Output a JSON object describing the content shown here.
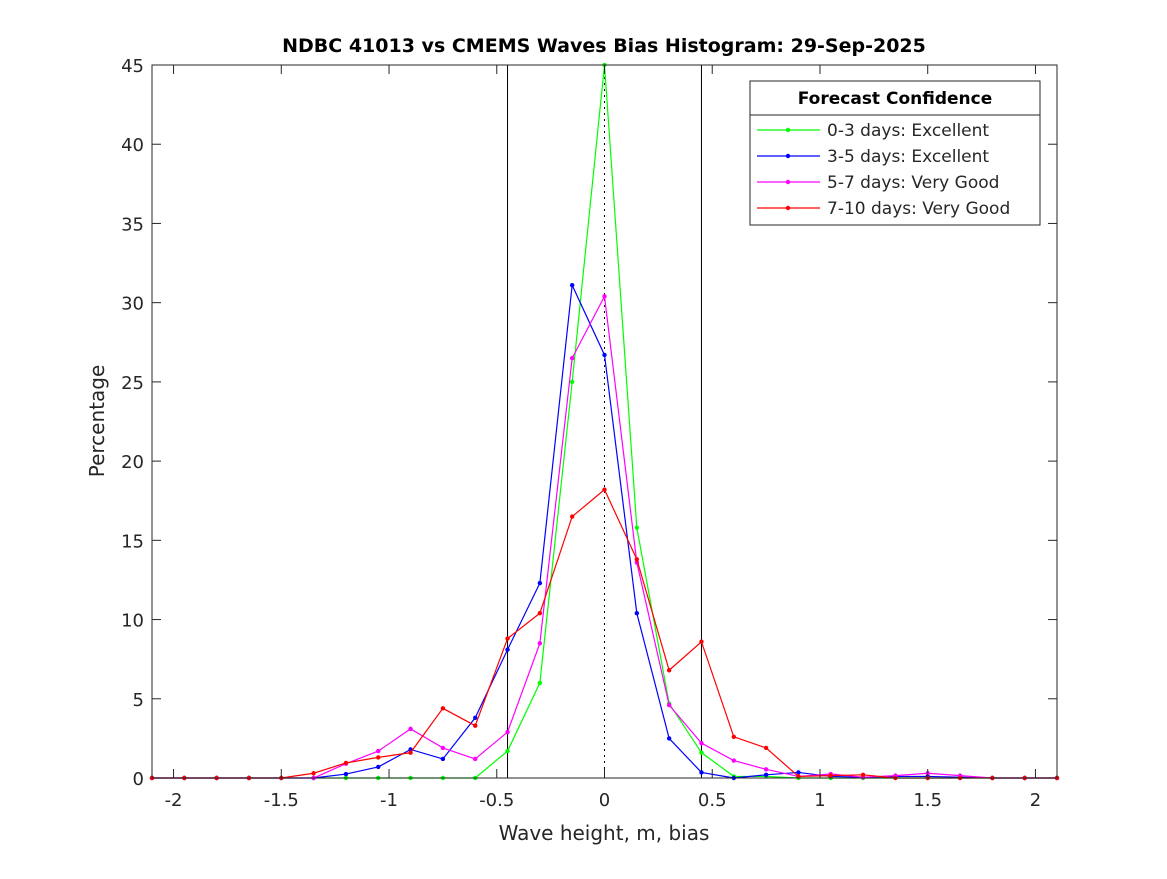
{
  "chart_data": {
    "type": "line",
    "title": "NDBC 41013 vs CMEMS Waves Bias Histogram: 29-Sep-2025",
    "xlabel": "Wave height, m, bias",
    "ylabel": "Percentage",
    "xlim": [
      -2.1,
      2.1
    ],
    "ylim": [
      0,
      45
    ],
    "xticks": [
      -2,
      -1.5,
      -1,
      -0.5,
      0,
      0.5,
      1,
      1.5,
      2
    ],
    "xtick_labels": [
      "-2",
      "-1.5",
      "-1",
      "-0.5",
      "0",
      "0.5",
      "1",
      "1.5",
      "2"
    ],
    "yticks": [
      0,
      5,
      10,
      15,
      20,
      25,
      30,
      35,
      40,
      45
    ],
    "ytick_labels": [
      "0",
      "5",
      "10",
      "15",
      "20",
      "25",
      "30",
      "35",
      "40",
      "45"
    ],
    "vlines_solid": [
      -0.45,
      0.45
    ],
    "vline_dotted": 0,
    "legend_title": "Forecast Confidence",
    "legend_position": "top-right",
    "x": [
      -2.1,
      -1.95,
      -1.8,
      -1.65,
      -1.5,
      -1.35,
      -1.2,
      -1.05,
      -0.9,
      -0.75,
      -0.6,
      -0.45,
      -0.3,
      -0.15,
      0,
      0.15,
      0.3,
      0.45,
      0.6,
      0.75,
      0.9,
      1.05,
      1.2,
      1.35,
      1.5,
      1.65,
      1.8,
      1.95,
      2.1
    ],
    "series": [
      {
        "name": "0-3 days: Excellent",
        "color": "#00ff00",
        "values": [
          0,
          0,
          0,
          0,
          0,
          0,
          0,
          0,
          0,
          0,
          0,
          1.7,
          6.0,
          25.0,
          45.0,
          15.8,
          4.7,
          1.6,
          0.1,
          0.1,
          0,
          0,
          0,
          0,
          0,
          0,
          0,
          0,
          0
        ]
      },
      {
        "name": "3-5 days: Excellent",
        "color": "#0000ff",
        "values": [
          0,
          0,
          0,
          0,
          0,
          0,
          0.25,
          0.7,
          1.8,
          1.2,
          3.8,
          8.1,
          12.3,
          31.1,
          26.7,
          10.4,
          2.5,
          0.35,
          0,
          0.2,
          0.35,
          0.1,
          0.05,
          0.1,
          0.1,
          0.05,
          0,
          0,
          0
        ]
      },
      {
        "name": "5-7 days: Very Good",
        "color": "#ff00ff",
        "values": [
          0,
          0,
          0,
          0,
          0,
          0,
          0.9,
          1.7,
          3.1,
          1.9,
          1.2,
          2.9,
          8.5,
          26.5,
          30.4,
          13.6,
          4.6,
          2.2,
          1.1,
          0.55,
          0.1,
          0.25,
          0.05,
          0.15,
          0.3,
          0.15,
          0,
          0,
          0
        ]
      },
      {
        "name": "7-10 days: Very Good",
        "color": "#ff0000",
        "values": [
          0,
          0,
          0,
          0,
          0,
          0.3,
          0.95,
          1.3,
          1.6,
          4.4,
          3.3,
          8.8,
          10.4,
          16.5,
          18.2,
          13.8,
          6.8,
          8.6,
          2.6,
          1.9,
          0.1,
          0.15,
          0.2,
          0,
          0,
          0,
          0,
          0,
          0
        ]
      }
    ]
  }
}
